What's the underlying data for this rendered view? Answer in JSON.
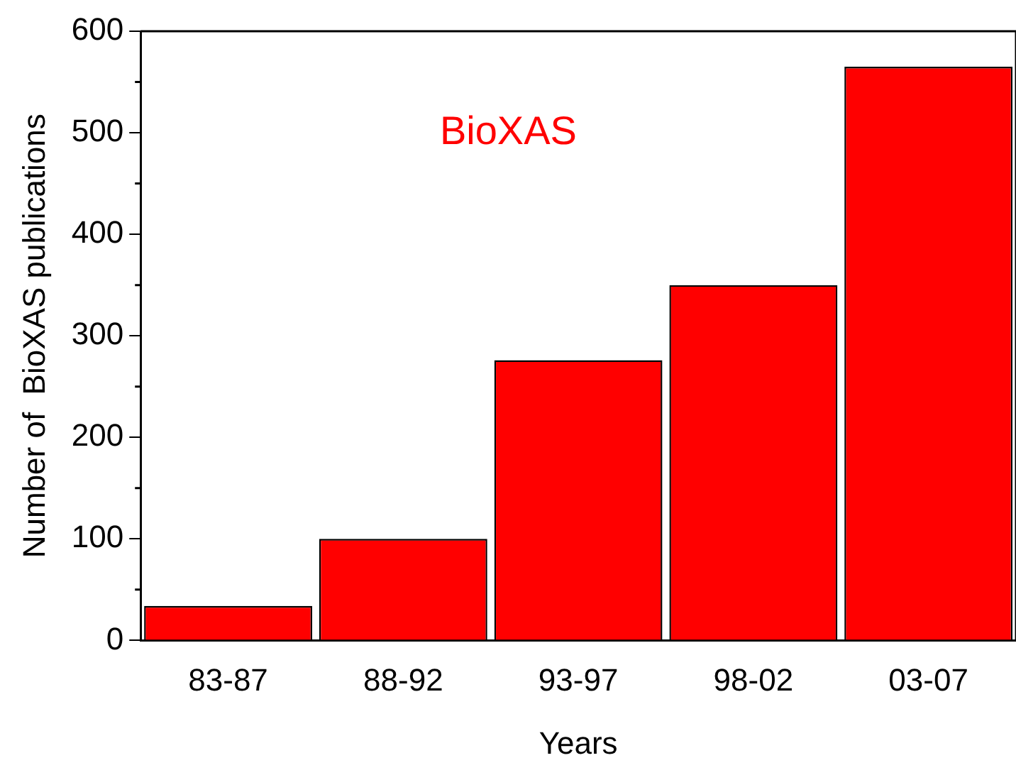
{
  "chart_data": {
    "type": "bar",
    "xlabel": "Years",
    "ylabel": "Number of  BioXAS publications",
    "categories": [
      "83-87",
      "88-92",
      "93-97",
      "98-02",
      "03-07"
    ],
    "values": [
      34,
      100,
      276,
      350,
      565
    ],
    "color": "#ff0000",
    "ylim": [
      0,
      600
    ],
    "yticks": [
      0,
      100,
      200,
      300,
      400,
      500,
      600
    ],
    "grid": false,
    "annotations": [
      "BioXAS"
    ]
  }
}
